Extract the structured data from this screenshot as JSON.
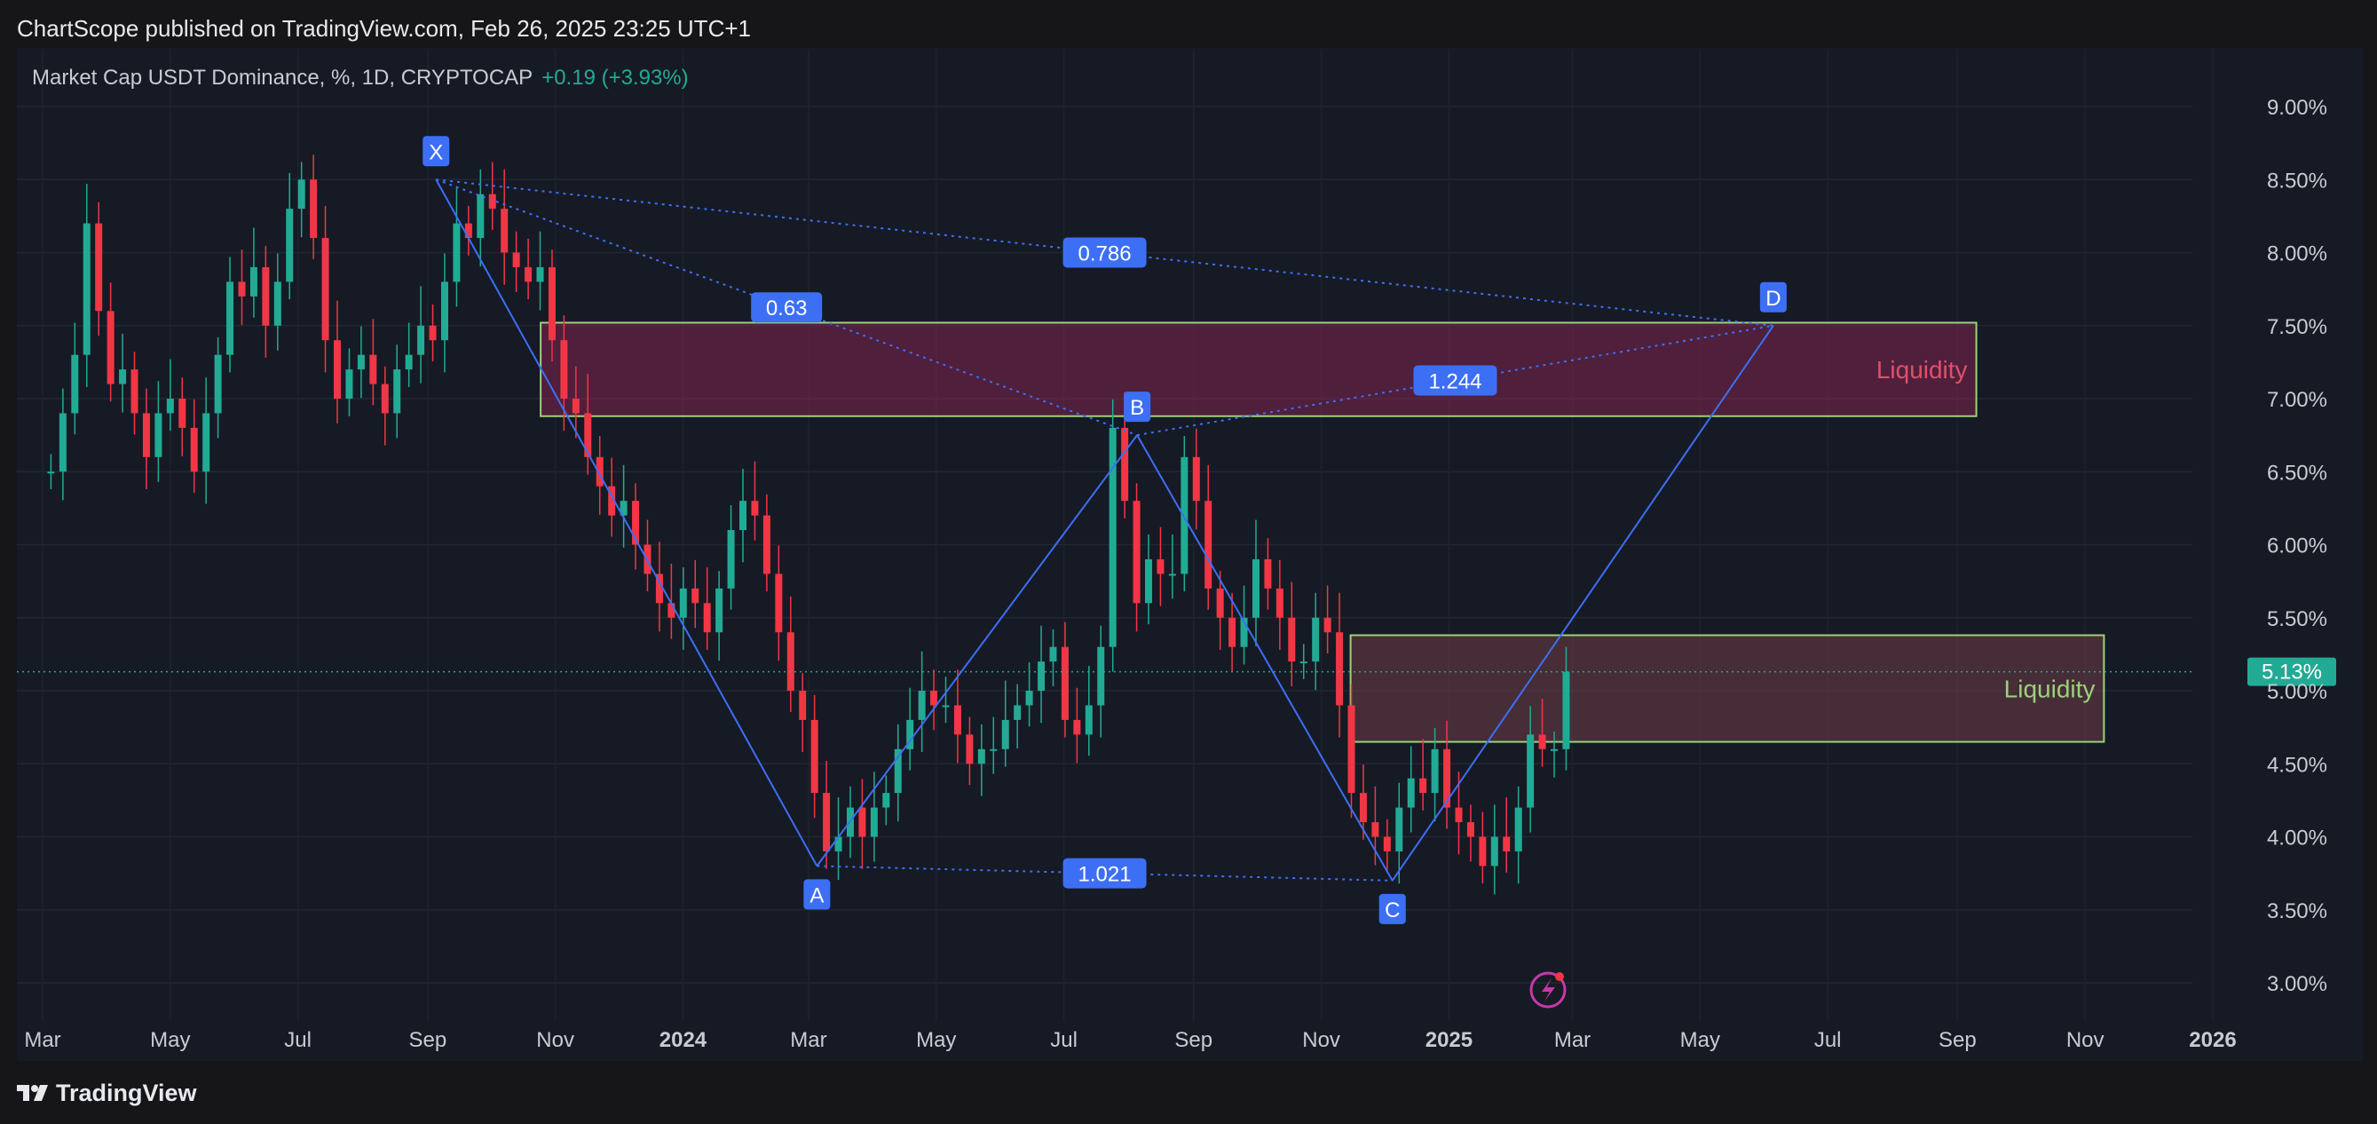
{
  "header": {
    "published": "ChartScope published on TradingView.com, Feb 26, 2025 23:25 UTC+1"
  },
  "legend": {
    "symbol": "Market Cap USDT Dominance, %, 1D, CRYPTOCAP",
    "change": "+0.19 (+3.93%)"
  },
  "footer": {
    "brand": "TradingView"
  },
  "colors": {
    "background": "#161a25",
    "pattern": "#3d6ff5",
    "up": "#22ab94",
    "down": "#f23645",
    "last_price": "#22ab94"
  },
  "chart_data": {
    "type": "candlestick",
    "x_labels": [
      "Mar",
      "May",
      "Jul",
      "Sep",
      "Nov",
      "2024",
      "Mar",
      "May",
      "Jul",
      "Sep",
      "Nov",
      "2025",
      "Mar",
      "May",
      "Jul",
      "Sep",
      "Nov",
      "2026"
    ],
    "y_ticks": [
      "9.00%",
      "8.50%",
      "8.00%",
      "7.50%",
      "7.00%",
      "6.50%",
      "6.00%",
      "5.50%",
      "5.00%",
      "4.50%",
      "4.00%",
      "3.50%",
      "3.00%"
    ],
    "ylim": [
      3.0,
      9.0
    ],
    "last_price": "5.13%",
    "series": [
      {
        "values": [
          6.5,
          6.9,
          7.3,
          8.2,
          7.6,
          7.1,
          7.2,
          6.9,
          6.6,
          6.9,
          7.0,
          6.8,
          6.5,
          6.9,
          7.3,
          7.8,
          7.7,
          7.9,
          7.5,
          7.8,
          8.3,
          8.5,
          8.1,
          7.4,
          7.0,
          7.2,
          7.3,
          7.1,
          6.9,
          7.2,
          7.3,
          7.5,
          7.4,
          7.8,
          8.2,
          8.1,
          8.4,
          8.3,
          8.0,
          7.9,
          7.8,
          7.9,
          7.4,
          7.0,
          6.9,
          6.6,
          6.4,
          6.2,
          6.3,
          6.0,
          5.8,
          5.6,
          5.5,
          5.7,
          5.6,
          5.4,
          5.7,
          6.1,
          6.3,
          6.2,
          5.8,
          5.4,
          5.0,
          4.8,
          4.3,
          3.9,
          4.0,
          4.2,
          4.0,
          4.2,
          4.3,
          4.6,
          4.8,
          5.0,
          4.9,
          4.9,
          4.7,
          4.5,
          4.6,
          4.6,
          4.8,
          4.9,
          5.0,
          5.2,
          5.3,
          4.8,
          4.7,
          4.9,
          5.3,
          6.8,
          6.3,
          5.6,
          5.9,
          5.8,
          5.8,
          6.6,
          6.3,
          5.7,
          5.5,
          5.3,
          5.5,
          5.9,
          5.7,
          5.5,
          5.2,
          5.2,
          5.5,
          5.4,
          4.9,
          4.3,
          4.1,
          4.0,
          3.9,
          4.2,
          4.4,
          4.3,
          4.6,
          4.2,
          4.1,
          4.0,
          3.8,
          4.0,
          3.9,
          4.2,
          4.7,
          4.6,
          4.6,
          5.13
        ]
      }
    ],
    "harmonic_pattern": {
      "points": [
        {
          "label": "X",
          "date": "2023-09-05",
          "value": 8.5
        },
        {
          "label": "A",
          "date": "2024-03-05",
          "value": 3.8
        },
        {
          "label": "B",
          "date": "2024-08-05",
          "value": 6.75
        },
        {
          "label": "C",
          "date": "2024-12-05",
          "value": 3.7
        },
        {
          "label": "D",
          "date": "2025-06-05",
          "value": 7.5
        }
      ],
      "ratios": [
        {
          "label": "0.63",
          "value": 0.63
        },
        {
          "label": "0.786",
          "value": 0.786
        },
        {
          "label": "1.244",
          "value": 1.244
        },
        {
          "label": "1.021",
          "value": 1.021
        }
      ]
    },
    "zones": [
      {
        "label": "Liquidity",
        "top": 7.52,
        "bottom": 6.88,
        "start": "2023-10-25",
        "end": "2025-09-10",
        "color": "#a0255a"
      },
      {
        "label": "Liquidity",
        "top": 5.38,
        "bottom": 4.65,
        "start": "2024-11-15",
        "end": "2025-11-10",
        "color": "#8a4850"
      }
    ]
  }
}
